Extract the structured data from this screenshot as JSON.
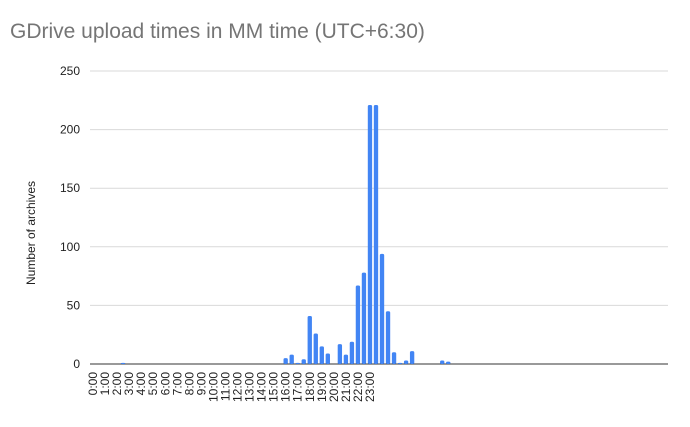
{
  "chart_data": {
    "type": "bar",
    "title": "GDrive upload times in MM time (UTC+6:30)",
    "ylabel": "Number of archives",
    "xlabel": "",
    "ylim": [
      0,
      250
    ],
    "yticks": [
      0,
      50,
      100,
      150,
      200,
      250
    ],
    "bar_color": "#4285f4",
    "grid": true,
    "x_tick_labels": [
      "0:00",
      "1:00",
      "2:00",
      "3:00",
      "4:00",
      "5:00",
      "6:00",
      "7:00",
      "8:00",
      "9:00",
      "10:00",
      "11:00",
      "12:00",
      "13:00",
      "14:00",
      "15:00",
      "16:00",
      "17:00",
      "18:00",
      "19:00",
      "20:00",
      "21:00",
      "22:00",
      "23:00"
    ],
    "bin_width_hours": 0.5,
    "values": [
      0,
      0,
      0,
      0,
      0,
      1,
      0,
      0,
      0,
      0,
      0,
      0,
      0,
      0,
      0,
      0,
      0,
      0,
      0,
      0,
      0,
      0,
      0,
      0,
      0,
      0,
      0,
      0,
      0,
      0,
      0,
      0,
      5,
      8,
      1,
      4,
      41,
      26,
      15,
      9,
      0,
      17,
      8,
      19,
      67,
      78,
      221,
      221,
      94,
      45,
      10,
      1,
      3,
      11,
      0,
      0,
      0,
      0,
      3,
      2,
      0,
      0,
      0,
      0,
      0,
      0,
      0,
      0,
      0,
      0,
      0,
      0,
      0,
      0,
      0,
      0,
      0,
      0,
      0,
      0,
      0,
      0,
      0,
      0,
      0,
      0,
      0,
      0,
      0,
      0,
      0,
      0,
      0,
      0,
      0,
      0
    ]
  }
}
